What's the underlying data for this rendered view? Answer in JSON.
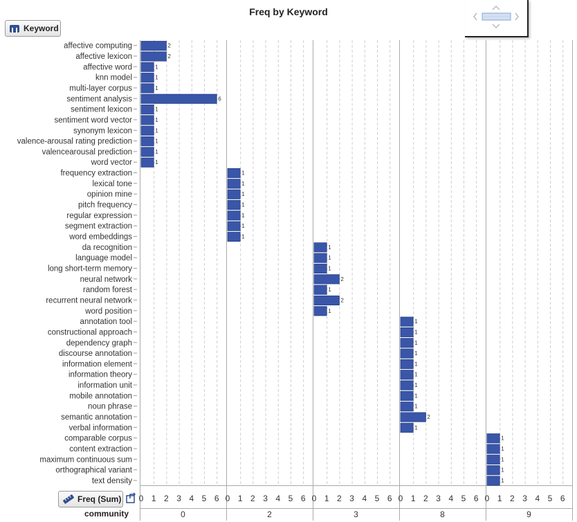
{
  "chart_data": {
    "type": "bar",
    "orientation": "horizontal",
    "title": "Freq by Keyword",
    "ylabel_button": "Keyword",
    "xlabel_button": "Freq (Sum)",
    "panel_axis_label": "community",
    "xlim": [
      0,
      6.5
    ],
    "x_ticks": [
      "0",
      "1",
      "2",
      "3",
      "4",
      "5",
      "6"
    ],
    "grid": true,
    "bar_color": "#3a56a8",
    "panels": [
      {
        "community": "0",
        "items": [
          {
            "keyword": "affective computing",
            "value": 2
          },
          {
            "keyword": "affective lexicon",
            "value": 2
          },
          {
            "keyword": "affective word",
            "value": 1
          },
          {
            "keyword": "knn model",
            "value": 1
          },
          {
            "keyword": "multi-layer corpus",
            "value": 1
          },
          {
            "keyword": "sentiment analysis",
            "value": 6
          },
          {
            "keyword": "sentiment lexicon",
            "value": 1
          },
          {
            "keyword": "sentiment word vector",
            "value": 1
          },
          {
            "keyword": "synonym lexicon",
            "value": 1
          },
          {
            "keyword": "valence-arousal rating prediction",
            "value": 1
          },
          {
            "keyword": "valencearousal prediction",
            "value": 1
          },
          {
            "keyword": "word vector",
            "value": 1
          }
        ]
      },
      {
        "community": "2",
        "items": [
          {
            "keyword": "frequency extraction",
            "value": 1
          },
          {
            "keyword": "lexical tone",
            "value": 1
          },
          {
            "keyword": "opinion mine",
            "value": 1
          },
          {
            "keyword": "pitch frequency",
            "value": 1
          },
          {
            "keyword": "regular expression",
            "value": 1
          },
          {
            "keyword": "segment extraction",
            "value": 1
          },
          {
            "keyword": "word embeddings",
            "value": 1
          }
        ]
      },
      {
        "community": "3",
        "items": [
          {
            "keyword": "da recognition",
            "value": 1
          },
          {
            "keyword": "language model",
            "value": 1
          },
          {
            "keyword": "long short-term memory",
            "value": 1
          },
          {
            "keyword": "neural network",
            "value": 2
          },
          {
            "keyword": "random forest",
            "value": 1
          },
          {
            "keyword": "recurrent neural network",
            "value": 2
          },
          {
            "keyword": "word position",
            "value": 1
          }
        ]
      },
      {
        "community": "8",
        "items": [
          {
            "keyword": "annotation tool",
            "value": 1
          },
          {
            "keyword": "constructional approach",
            "value": 1
          },
          {
            "keyword": "dependency graph",
            "value": 1
          },
          {
            "keyword": "discourse annotation",
            "value": 1
          },
          {
            "keyword": "information element",
            "value": 1
          },
          {
            "keyword": "information theory",
            "value": 1
          },
          {
            "keyword": "information unit",
            "value": 1
          },
          {
            "keyword": "mobile annotation",
            "value": 1
          },
          {
            "keyword": "noun phrase",
            "value": 1
          },
          {
            "keyword": "semantic annotation",
            "value": 2
          },
          {
            "keyword": "verbal information",
            "value": 1
          }
        ]
      },
      {
        "community": "9",
        "items": [
          {
            "keyword": "comparable corpus",
            "value": 1
          },
          {
            "keyword": "content extraction",
            "value": 1
          },
          {
            "keyword": "maximum continuous sum",
            "value": 1
          },
          {
            "keyword": "orthographical variant",
            "value": 1
          },
          {
            "keyword": "text density",
            "value": 1
          }
        ]
      }
    ]
  }
}
